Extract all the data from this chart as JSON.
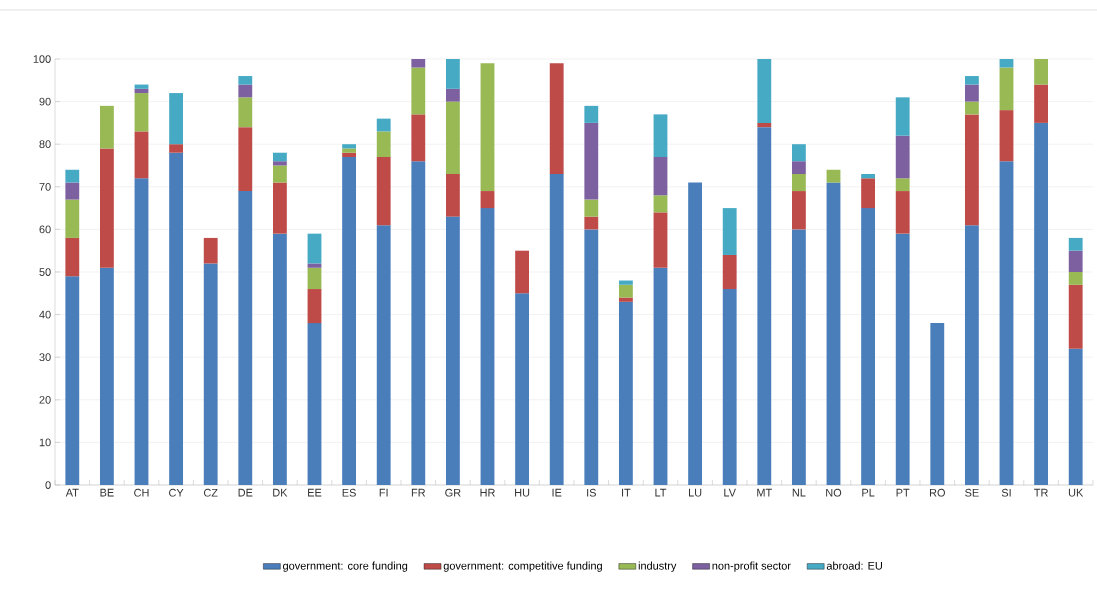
{
  "chart_data": {
    "type": "bar",
    "stacked": true,
    "categories": [
      "AT",
      "BE",
      "CH",
      "CY",
      "CZ",
      "DE",
      "DK",
      "EE",
      "ES",
      "FI",
      "FR",
      "GR",
      "HR",
      "HU",
      "IE",
      "IS",
      "IT",
      "LT",
      "LU",
      "LV",
      "MT",
      "NL",
      "NO",
      "PL",
      "PT",
      "RO",
      "SE",
      "SI",
      "TR",
      "UK"
    ],
    "series": [
      {
        "name": "government: core funding",
        "color": "#4a7ebb",
        "values": [
          49,
          51,
          72,
          78,
          52,
          69,
          59,
          38,
          77,
          61,
          76,
          63,
          65,
          45,
          73,
          60,
          43,
          51,
          71,
          46,
          84,
          60,
          71,
          65,
          59,
          38,
          61,
          76,
          85,
          32
        ]
      },
      {
        "name": "government: competitive funding",
        "color": "#be4b48",
        "values": [
          9,
          28,
          11,
          2,
          6,
          15,
          12,
          8,
          1,
          16,
          11,
          10,
          4,
          10,
          26,
          3,
          1,
          13,
          null,
          8,
          1,
          9,
          null,
          7,
          10,
          null,
          26,
          12,
          9,
          15
        ]
      },
      {
        "name": "industry",
        "color": "#98b954",
        "values": [
          9,
          10,
          9,
          null,
          null,
          7,
          4,
          5,
          1,
          6,
          11,
          17,
          30,
          null,
          null,
          4,
          3,
          4,
          null,
          null,
          null,
          4,
          3,
          null,
          3,
          null,
          3,
          10,
          6,
          3
        ]
      },
      {
        "name": "non-profit sector",
        "color": "#7d60a0",
        "values": [
          4,
          null,
          1,
          null,
          null,
          3,
          1,
          1,
          null,
          null,
          2,
          3,
          null,
          null,
          null,
          18,
          null,
          9,
          null,
          null,
          null,
          3,
          null,
          null,
          10,
          null,
          4,
          null,
          null,
          5
        ]
      },
      {
        "name": "abroad: EU",
        "color": "#46aac5",
        "values": [
          3,
          null,
          1,
          12,
          null,
          2,
          2,
          7,
          1,
          3,
          null,
          7,
          null,
          null,
          null,
          4,
          1,
          10,
          null,
          11,
          15,
          4,
          null,
          1,
          9,
          null,
          2,
          2,
          null,
          3
        ]
      }
    ],
    "ylim": [
      0,
      100
    ],
    "yticks": [
      0,
      10,
      20,
      30,
      40,
      50,
      60,
      70,
      80,
      90,
      100
    ],
    "grid": "y",
    "legend": "bottom"
  }
}
